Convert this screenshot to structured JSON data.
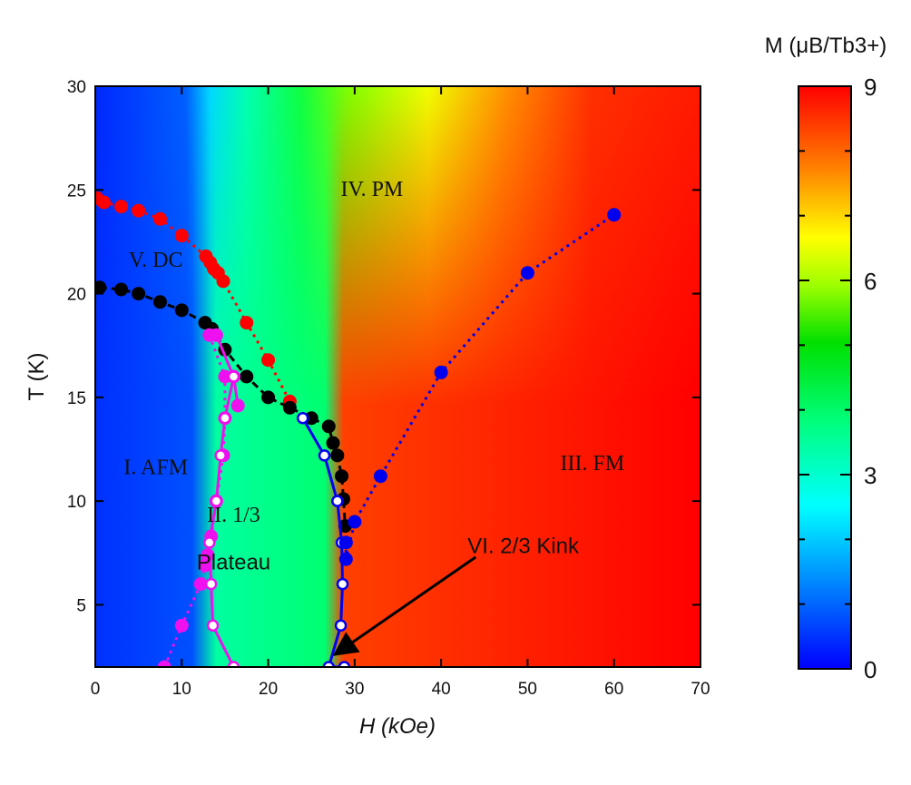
{
  "chart_data": {
    "type": "heatmap",
    "xlabel": "H (kOe)",
    "ylabel": "T (K)",
    "xlim": [
      0,
      70
    ],
    "ylim": [
      2,
      30
    ],
    "xticks": [
      0,
      10,
      20,
      30,
      40,
      50,
      60,
      70
    ],
    "yticks": [
      5,
      10,
      15,
      20,
      25,
      30
    ],
    "colorbar": {
      "title": "M (μB/Tb3+)",
      "range": [
        0,
        9
      ],
      "ticks": [
        0,
        3,
        6,
        9
      ],
      "colors": [
        "#0000ff",
        "#00a0ff",
        "#00ffff",
        "#00ff80",
        "#00ff00",
        "#a0ff00",
        "#ffff00",
        "#ff8000",
        "#ff0000"
      ]
    },
    "regions": [
      {
        "label": "I. AFM",
        "h": 7,
        "t": 11.3
      },
      {
        "label": "II. 1/3",
        "h": 16,
        "t": 9
      },
      {
        "label": "Plateau",
        "h": 16,
        "t": 6.7
      },
      {
        "label": "III. FM",
        "h": 57.5,
        "t": 11.5
      },
      {
        "label": "IV. PM",
        "h": 32,
        "t": 24.7
      },
      {
        "label": "V. DC",
        "h": 7,
        "t": 21.3
      },
      {
        "label": "VI. 2/3 Kink",
        "h": 49.5,
        "t": 7.5
      }
    ],
    "annotation_arrow": {
      "from": [
        44,
        7.3
      ],
      "to": [
        27.7,
        2.6
      ]
    },
    "series": [
      {
        "name": "",
        "color": "#ff0000",
        "style": "dotted",
        "marker": "filled",
        "points": [
          [
            0.2,
            24.6
          ],
          [
            1,
            24.4
          ],
          [
            3,
            24.2
          ],
          [
            5,
            24
          ],
          [
            7.5,
            23.6
          ],
          [
            10,
            22.8
          ],
          [
            12.8,
            21.8
          ],
          [
            13.3,
            21.5
          ],
          [
            13.7,
            21.2
          ],
          [
            14.2,
            21
          ],
          [
            14.8,
            20.6
          ],
          [
            17.5,
            18.6
          ],
          [
            20,
            16.8
          ],
          [
            22.5,
            14.8
          ]
        ]
      },
      {
        "name": "",
        "color": "#000000",
        "style": "dashed",
        "marker": "filled",
        "points": [
          [
            0.5,
            20.3
          ],
          [
            3,
            20.2
          ],
          [
            5,
            20
          ],
          [
            7.5,
            19.6
          ],
          [
            10,
            19.2
          ],
          [
            12.7,
            18.6
          ],
          [
            13.5,
            18.3
          ],
          [
            15,
            17.3
          ],
          [
            17.5,
            16
          ],
          [
            20,
            15
          ],
          [
            22.5,
            14.5
          ],
          [
            25,
            14
          ],
          [
            27,
            13.6
          ],
          [
            27.5,
            12.8
          ],
          [
            28,
            12.2
          ],
          [
            28.5,
            11.2
          ],
          [
            28.7,
            10.1
          ],
          [
            28.9,
            8.8
          ]
        ]
      },
      {
        "name": "",
        "color": "#ee10ee",
        "style": "solid",
        "marker": "filled",
        "points": [
          [
            14,
            18
          ],
          [
            16,
            16
          ],
          [
            16.5,
            14.6
          ]
        ]
      },
      {
        "name": "",
        "color": "#ee10ee",
        "style": "dotted",
        "marker": "filled",
        "points": [
          [
            13.2,
            18
          ],
          [
            15,
            16
          ],
          [
            15,
            14
          ],
          [
            14.8,
            12.2
          ],
          [
            14,
            10
          ],
          [
            13.4,
            8.3
          ],
          [
            13,
            7.4
          ],
          [
            12.7,
            6.9
          ],
          [
            12.2,
            6
          ],
          [
            10,
            4
          ],
          [
            8,
            2
          ]
        ]
      },
      {
        "name": "",
        "color": "#ee10ee",
        "style": "solid",
        "marker": "open",
        "points": [
          [
            16,
            16
          ],
          [
            15,
            14
          ],
          [
            14.5,
            12.2
          ],
          [
            14,
            10
          ],
          [
            13.2,
            8
          ],
          [
            13.4,
            6
          ],
          [
            13.6,
            4
          ],
          [
            16,
            2
          ]
        ]
      },
      {
        "name": "",
        "color": "#0000ee",
        "style": "solid",
        "marker": "open",
        "points": [
          [
            24,
            14
          ],
          [
            26.5,
            12.2
          ],
          [
            28,
            10
          ],
          [
            28.5,
            8
          ],
          [
            28.6,
            6
          ],
          [
            28.4,
            4
          ],
          [
            27,
            2
          ],
          [
            28.8,
            2
          ]
        ]
      },
      {
        "name": "",
        "color": "#0000ee",
        "style": "dotted",
        "marker": "filled",
        "points": [
          [
            29,
            8
          ],
          [
            29,
            7.2
          ],
          [
            30,
            9
          ],
          [
            33,
            11.2
          ],
          [
            40,
            16.2
          ],
          [
            50,
            21
          ],
          [
            60,
            23.8
          ]
        ]
      }
    ]
  }
}
